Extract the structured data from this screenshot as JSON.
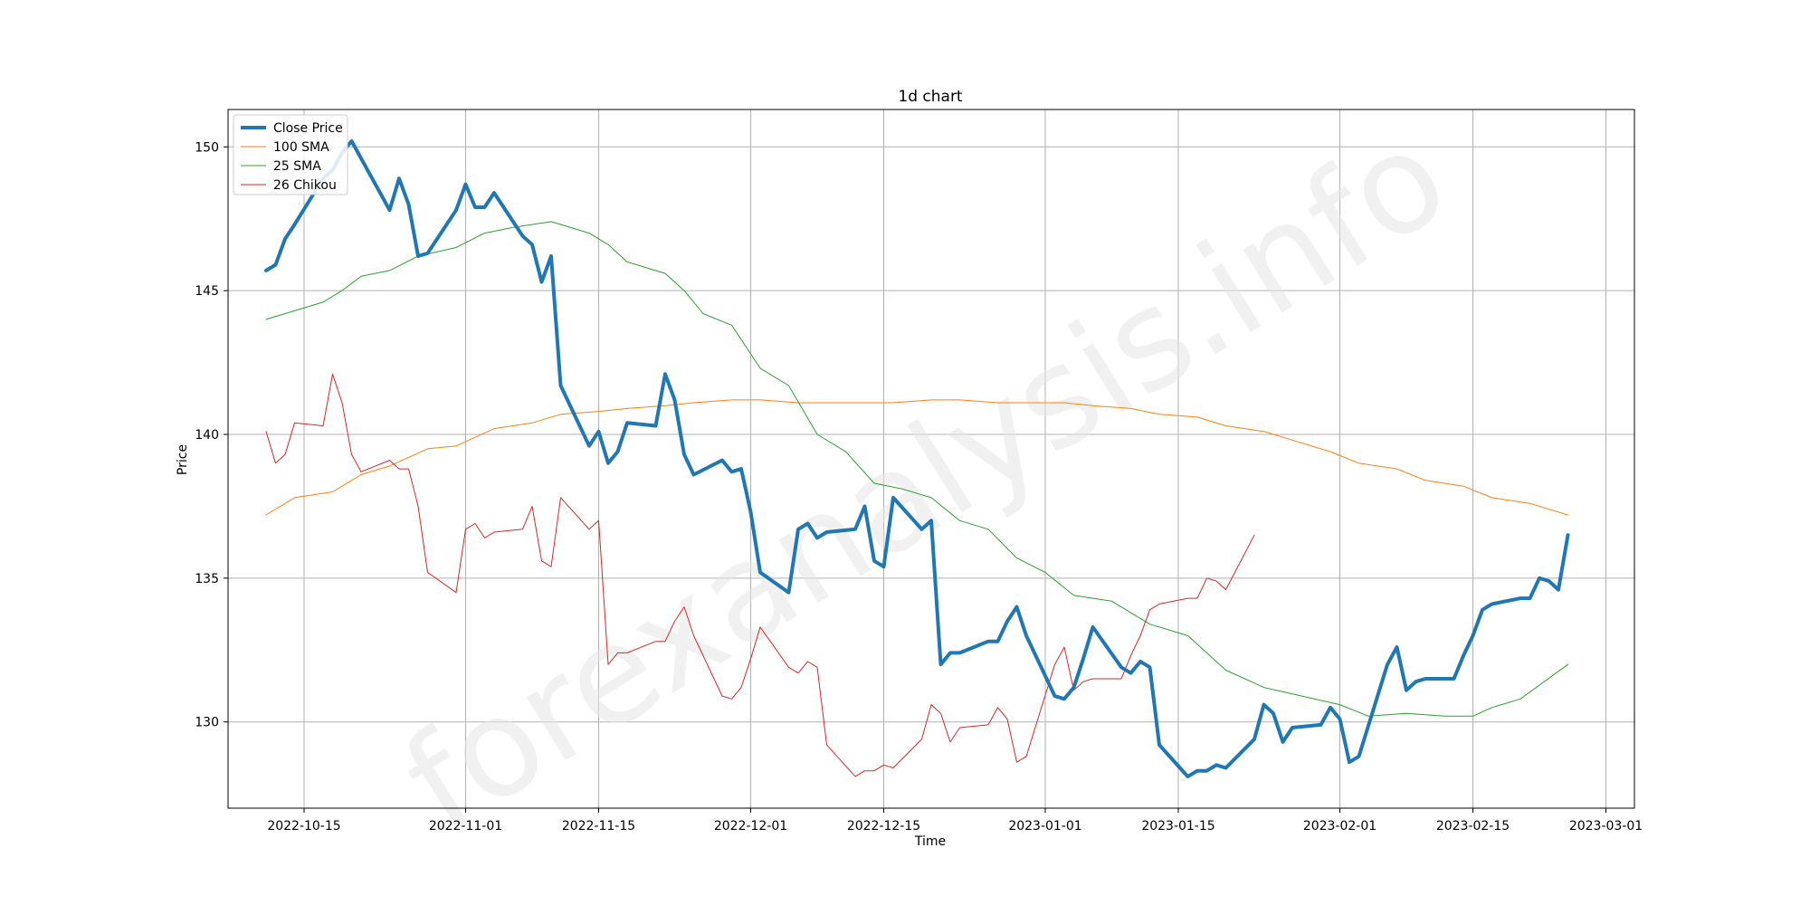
{
  "chart_data": {
    "type": "line",
    "title": "1d chart",
    "xlabel": "Time",
    "ylabel": "Price",
    "watermark": "forexanalysis.info",
    "grid": true,
    "legend_position": "top-left",
    "xlim": [
      "2022-10-07",
      "2023-03-04"
    ],
    "ylim": [
      127,
      151.3
    ],
    "x_ticks": [
      "2022-10-15",
      "2022-11-01",
      "2022-11-15",
      "2022-12-01",
      "2022-12-15",
      "2023-01-01",
      "2023-01-15",
      "2023-02-01",
      "2023-02-15",
      "2023-03-01"
    ],
    "y_ticks": [
      130,
      135,
      140,
      145,
      150
    ],
    "series": [
      {
        "name": "Close Price",
        "color": "#1f77b4",
        "points": [
          [
            "2022-10-11",
            145.7
          ],
          [
            "2022-10-12",
            145.9
          ],
          [
            "2022-10-13",
            146.8
          ],
          [
            "2022-10-14",
            147.3
          ],
          [
            "2022-10-17",
            148.9
          ],
          [
            "2022-10-18",
            149.2
          ],
          [
            "2022-10-19",
            149.8
          ],
          [
            "2022-10-20",
            150.2
          ],
          [
            "2022-10-24",
            147.8
          ],
          [
            "2022-10-25",
            148.9
          ],
          [
            "2022-10-26",
            148.0
          ],
          [
            "2022-10-27",
            146.2
          ],
          [
            "2022-10-28",
            146.3
          ],
          [
            "2022-10-31",
            147.8
          ],
          [
            "2022-11-01",
            148.7
          ],
          [
            "2022-11-02",
            147.9
          ],
          [
            "2022-11-03",
            147.9
          ],
          [
            "2022-11-04",
            148.4
          ],
          [
            "2022-11-07",
            146.9
          ],
          [
            "2022-11-08",
            146.6
          ],
          [
            "2022-11-09",
            145.3
          ],
          [
            "2022-11-10",
            146.2
          ],
          [
            "2022-11-11",
            141.7
          ],
          [
            "2022-11-14",
            139.6
          ],
          [
            "2022-11-15",
            140.1
          ],
          [
            "2022-11-16",
            139.0
          ],
          [
            "2022-11-17",
            139.4
          ],
          [
            "2022-11-18",
            140.4
          ],
          [
            "2022-11-21",
            140.3
          ],
          [
            "2022-11-22",
            142.1
          ],
          [
            "2022-11-23",
            141.2
          ],
          [
            "2022-11-24",
            139.3
          ],
          [
            "2022-11-25",
            138.6
          ],
          [
            "2022-11-28",
            139.1
          ],
          [
            "2022-11-29",
            138.7
          ],
          [
            "2022-11-30",
            138.8
          ],
          [
            "2022-12-01",
            137.3
          ],
          [
            "2022-12-02",
            135.2
          ],
          [
            "2022-12-05",
            134.5
          ],
          [
            "2022-12-06",
            136.7
          ],
          [
            "2022-12-07",
            136.9
          ],
          [
            "2022-12-08",
            136.4
          ],
          [
            "2022-12-09",
            136.6
          ],
          [
            "2022-12-12",
            136.7
          ],
          [
            "2022-12-13",
            137.5
          ],
          [
            "2022-12-14",
            135.6
          ],
          [
            "2022-12-15",
            135.4
          ],
          [
            "2022-12-16",
            137.8
          ],
          [
            "2022-12-19",
            136.7
          ],
          [
            "2022-12-20",
            137.0
          ],
          [
            "2022-12-21",
            132.0
          ],
          [
            "2022-12-22",
            132.4
          ],
          [
            "2022-12-23",
            132.4
          ],
          [
            "2022-12-26",
            132.8
          ],
          [
            "2022-12-27",
            132.8
          ],
          [
            "2022-12-28",
            133.5
          ],
          [
            "2022-12-29",
            134.0
          ],
          [
            "2022-12-30",
            133.0
          ],
          [
            "2023-01-02",
            130.9
          ],
          [
            "2023-01-03",
            130.8
          ],
          [
            "2023-01-04",
            131.2
          ],
          [
            "2023-01-05",
            132.2
          ],
          [
            "2023-01-06",
            133.3
          ],
          [
            "2023-01-09",
            131.9
          ],
          [
            "2023-01-10",
            131.7
          ],
          [
            "2023-01-11",
            132.1
          ],
          [
            "2023-01-12",
            131.9
          ],
          [
            "2023-01-13",
            129.2
          ],
          [
            "2023-01-16",
            128.1
          ],
          [
            "2023-01-17",
            128.3
          ],
          [
            "2023-01-18",
            128.3
          ],
          [
            "2023-01-19",
            128.5
          ],
          [
            "2023-01-20",
            128.4
          ],
          [
            "2023-01-23",
            129.4
          ],
          [
            "2023-01-24",
            130.6
          ],
          [
            "2023-01-25",
            130.3
          ],
          [
            "2023-01-26",
            129.3
          ],
          [
            "2023-01-27",
            129.8
          ],
          [
            "2023-01-30",
            129.9
          ],
          [
            "2023-01-31",
            130.5
          ],
          [
            "2023-02-01",
            130.1
          ],
          [
            "2023-02-02",
            128.6
          ],
          [
            "2023-02-03",
            128.8
          ],
          [
            "2023-02-06",
            132.0
          ],
          [
            "2023-02-07",
            132.6
          ],
          [
            "2023-02-08",
            131.1
          ],
          [
            "2023-02-09",
            131.4
          ],
          [
            "2023-02-10",
            131.5
          ],
          [
            "2023-02-13",
            131.5
          ],
          [
            "2023-02-14",
            132.3
          ],
          [
            "2023-02-15",
            133.0
          ],
          [
            "2023-02-16",
            133.9
          ],
          [
            "2023-02-17",
            134.1
          ],
          [
            "2023-02-20",
            134.3
          ],
          [
            "2023-02-21",
            134.3
          ],
          [
            "2023-02-22",
            135.0
          ],
          [
            "2023-02-23",
            134.9
          ],
          [
            "2023-02-24",
            134.6
          ],
          [
            "2023-02-25",
            136.5
          ]
        ]
      },
      {
        "name": "100 SMA",
        "color": "#ff7f0e",
        "points": [
          [
            "2022-10-11",
            137.2
          ],
          [
            "2022-10-14",
            137.8
          ],
          [
            "2022-10-18",
            138.0
          ],
          [
            "2022-10-21",
            138.6
          ],
          [
            "2022-10-24",
            138.9
          ],
          [
            "2022-10-28",
            139.5
          ],
          [
            "2022-10-31",
            139.6
          ],
          [
            "2022-11-04",
            140.2
          ],
          [
            "2022-11-08",
            140.4
          ],
          [
            "2022-11-11",
            140.7
          ],
          [
            "2022-11-15",
            140.8
          ],
          [
            "2022-11-18",
            140.9
          ],
          [
            "2022-11-22",
            141.0
          ],
          [
            "2022-11-25",
            141.1
          ],
          [
            "2022-11-29",
            141.2
          ],
          [
            "2022-12-02",
            141.2
          ],
          [
            "2022-12-06",
            141.1
          ],
          [
            "2022-12-09",
            141.1
          ],
          [
            "2022-12-13",
            141.1
          ],
          [
            "2022-12-16",
            141.1
          ],
          [
            "2022-12-20",
            141.2
          ],
          [
            "2022-12-23",
            141.2
          ],
          [
            "2022-12-27",
            141.1
          ],
          [
            "2022-12-30",
            141.1
          ],
          [
            "2023-01-03",
            141.1
          ],
          [
            "2023-01-06",
            141.0
          ],
          [
            "2023-01-10",
            140.9
          ],
          [
            "2023-01-13",
            140.7
          ],
          [
            "2023-01-17",
            140.6
          ],
          [
            "2023-01-20",
            140.3
          ],
          [
            "2023-01-24",
            140.1
          ],
          [
            "2023-01-27",
            139.8
          ],
          [
            "2023-01-31",
            139.4
          ],
          [
            "2023-02-03",
            139.0
          ],
          [
            "2023-02-07",
            138.8
          ],
          [
            "2023-02-10",
            138.4
          ],
          [
            "2023-02-14",
            138.2
          ],
          [
            "2023-02-17",
            137.8
          ],
          [
            "2023-02-21",
            137.6
          ],
          [
            "2023-02-25",
            137.2
          ]
        ]
      },
      {
        "name": "25 SMA",
        "color": "#2ca02c",
        "points": [
          [
            "2022-10-11",
            144.0
          ],
          [
            "2022-10-14",
            144.3
          ],
          [
            "2022-10-17",
            144.6
          ],
          [
            "2022-10-19",
            145.0
          ],
          [
            "2022-10-21",
            145.5
          ],
          [
            "2022-10-24",
            145.7
          ],
          [
            "2022-10-27",
            146.2
          ],
          [
            "2022-10-31",
            146.5
          ],
          [
            "2022-11-03",
            147.0
          ],
          [
            "2022-11-06",
            147.2
          ],
          [
            "2022-11-10",
            147.4
          ],
          [
            "2022-11-14",
            147.0
          ],
          [
            "2022-11-16",
            146.6
          ],
          [
            "2022-11-18",
            146.0
          ],
          [
            "2022-11-22",
            145.6
          ],
          [
            "2022-11-24",
            145.0
          ],
          [
            "2022-11-26",
            144.2
          ],
          [
            "2022-11-29",
            143.8
          ],
          [
            "2022-12-02",
            142.3
          ],
          [
            "2022-12-05",
            141.7
          ],
          [
            "2022-12-08",
            140.0
          ],
          [
            "2022-12-11",
            139.4
          ],
          [
            "2022-12-14",
            138.3
          ],
          [
            "2022-12-17",
            138.1
          ],
          [
            "2022-12-20",
            137.8
          ],
          [
            "2022-12-23",
            137.0
          ],
          [
            "2022-12-26",
            136.7
          ],
          [
            "2022-12-29",
            135.7
          ],
          [
            "2023-01-01",
            135.2
          ],
          [
            "2023-01-04",
            134.4
          ],
          [
            "2023-01-08",
            134.2
          ],
          [
            "2023-01-12",
            133.4
          ],
          [
            "2023-01-16",
            133.0
          ],
          [
            "2023-01-20",
            131.8
          ],
          [
            "2023-01-24",
            131.2
          ],
          [
            "2023-01-28",
            130.9
          ],
          [
            "2023-02-01",
            130.6
          ],
          [
            "2023-02-04",
            130.2
          ],
          [
            "2023-02-08",
            130.3
          ],
          [
            "2023-02-12",
            130.2
          ],
          [
            "2023-02-15",
            130.2
          ],
          [
            "2023-02-17",
            130.5
          ],
          [
            "2023-02-20",
            130.8
          ],
          [
            "2023-02-25",
            132.0
          ]
        ]
      },
      {
        "name": "26 Chikou",
        "color": "#d62728",
        "points": [
          [
            "2022-10-11",
            140.1
          ],
          [
            "2022-10-12",
            139.0
          ],
          [
            "2022-10-13",
            139.3
          ],
          [
            "2022-10-14",
            140.4
          ],
          [
            "2022-10-17",
            140.3
          ],
          [
            "2022-10-18",
            142.1
          ],
          [
            "2022-10-19",
            141.1
          ],
          [
            "2022-10-20",
            139.3
          ],
          [
            "2022-10-21",
            138.7
          ],
          [
            "2022-10-24",
            139.1
          ],
          [
            "2022-10-25",
            138.8
          ],
          [
            "2022-10-26",
            138.8
          ],
          [
            "2022-10-27",
            137.5
          ],
          [
            "2022-10-28",
            135.2
          ],
          [
            "2022-10-31",
            134.5
          ],
          [
            "2022-11-01",
            136.7
          ],
          [
            "2022-11-02",
            136.9
          ],
          [
            "2022-11-03",
            136.4
          ],
          [
            "2022-11-04",
            136.6
          ],
          [
            "2022-11-07",
            136.7
          ],
          [
            "2022-11-08",
            137.5
          ],
          [
            "2022-11-09",
            135.6
          ],
          [
            "2022-11-10",
            135.4
          ],
          [
            "2022-11-11",
            137.8
          ],
          [
            "2022-11-14",
            136.7
          ],
          [
            "2022-11-15",
            137.0
          ],
          [
            "2022-11-16",
            132.0
          ],
          [
            "2022-11-17",
            132.4
          ],
          [
            "2022-11-18",
            132.4
          ],
          [
            "2022-11-21",
            132.8
          ],
          [
            "2022-11-22",
            132.8
          ],
          [
            "2022-11-23",
            133.5
          ],
          [
            "2022-11-24",
            134.0
          ],
          [
            "2022-11-25",
            133.0
          ],
          [
            "2022-11-28",
            130.9
          ],
          [
            "2022-11-29",
            130.8
          ],
          [
            "2022-11-30",
            131.2
          ],
          [
            "2022-12-01",
            132.2
          ],
          [
            "2022-12-02",
            133.3
          ],
          [
            "2022-12-05",
            131.9
          ],
          [
            "2022-12-06",
            131.7
          ],
          [
            "2022-12-07",
            132.1
          ],
          [
            "2022-12-08",
            131.9
          ],
          [
            "2022-12-09",
            129.2
          ],
          [
            "2022-12-12",
            128.1
          ],
          [
            "2022-12-13",
            128.3
          ],
          [
            "2022-12-14",
            128.3
          ],
          [
            "2022-12-15",
            128.5
          ],
          [
            "2022-12-16",
            128.4
          ],
          [
            "2022-12-19",
            129.4
          ],
          [
            "2022-12-20",
            130.6
          ],
          [
            "2022-12-21",
            130.3
          ],
          [
            "2022-12-22",
            129.3
          ],
          [
            "2022-12-23",
            129.8
          ],
          [
            "2022-12-26",
            129.9
          ],
          [
            "2022-12-27",
            130.5
          ],
          [
            "2022-12-28",
            130.1
          ],
          [
            "2022-12-29",
            128.6
          ],
          [
            "2022-12-30",
            128.8
          ],
          [
            "2023-01-02",
            132.0
          ],
          [
            "2023-01-03",
            132.6
          ],
          [
            "2023-01-04",
            131.1
          ],
          [
            "2023-01-05",
            131.4
          ],
          [
            "2023-01-06",
            131.5
          ],
          [
            "2023-01-09",
            131.5
          ],
          [
            "2023-01-10",
            132.3
          ],
          [
            "2023-01-11",
            133.0
          ],
          [
            "2023-01-12",
            133.9
          ],
          [
            "2023-01-13",
            134.1
          ],
          [
            "2023-01-16",
            134.3
          ],
          [
            "2023-01-17",
            134.3
          ],
          [
            "2023-01-18",
            135.0
          ],
          [
            "2023-01-19",
            134.9
          ],
          [
            "2023-01-20",
            134.6
          ],
          [
            "2023-01-23",
            136.5
          ]
        ]
      }
    ]
  }
}
